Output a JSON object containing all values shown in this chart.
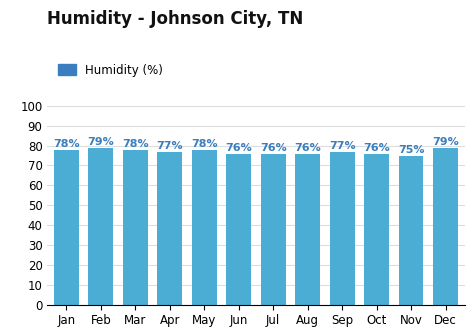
{
  "title": "Humidity - Johnson City, TN",
  "legend_label": "Humidity (%)",
  "months": [
    "Jan",
    "Feb",
    "Mar",
    "Apr",
    "May",
    "Jun",
    "Jul",
    "Aug",
    "Sep",
    "Oct",
    "Nov",
    "Dec"
  ],
  "values": [
    78,
    79,
    78,
    77,
    78,
    76,
    76,
    76,
    77,
    76,
    75,
    79
  ],
  "bar_color": "#4BADD4",
  "bar_legend_color": "#3A7EBF",
  "value_color": "#3A7EBF",
  "background_color": "#ffffff",
  "grid_color": "#dddddd",
  "ylim": [
    0,
    100
  ],
  "yticks": [
    0,
    10,
    20,
    30,
    40,
    50,
    60,
    70,
    80,
    90,
    100
  ],
  "title_fontsize": 12,
  "label_fontsize": 8.5,
  "tick_fontsize": 8.5,
  "value_fontsize": 8.0
}
